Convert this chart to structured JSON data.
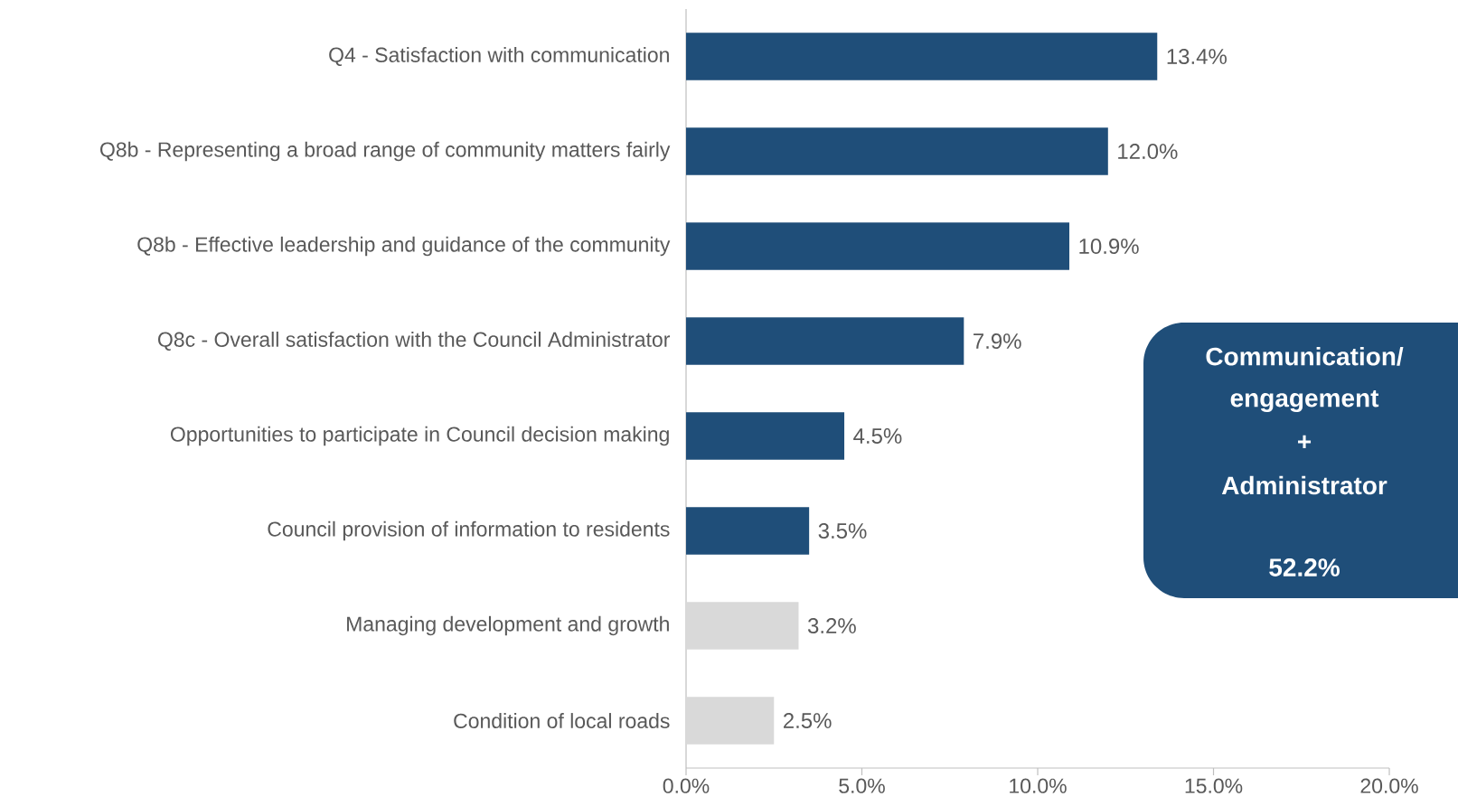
{
  "chart_data": {
    "type": "bar",
    "orientation": "horizontal",
    "categories": [
      "Q4 - Satisfaction with communication",
      "Q8b - Representing a broad range of community matters fairly",
      "Q8b - Effective leadership and guidance of the community",
      "Q8c - Overall satisfaction with the Council Administrator",
      "Opportunities to participate in Council decision making",
      "Council provision of information to residents",
      "Managing development and growth",
      "Condition of local roads"
    ],
    "values": [
      13.4,
      12.0,
      10.9,
      7.9,
      4.5,
      3.5,
      3.2,
      2.5
    ],
    "colors": [
      "#1f4e79",
      "#1f4e79",
      "#1f4e79",
      "#1f4e79",
      "#1f4e79",
      "#1f4e79",
      "#d9d9d9",
      "#d9d9d9"
    ],
    "value_labels": [
      "13.4%",
      "12.0%",
      "10.9%",
      "7.9%",
      "4.5%",
      "3.5%",
      "3.2%",
      "2.5%"
    ],
    "xlim": [
      0,
      20
    ],
    "xticks": [
      {
        "value": 0,
        "label": "0.0%"
      },
      {
        "value": 5,
        "label": "5.0%"
      },
      {
        "value": 10,
        "label": "10.0%"
      },
      {
        "value": 15,
        "label": "15.0%"
      },
      {
        "value": 20,
        "label": "20.0%"
      }
    ],
    "annotations": [
      "Communication/ engagement",
      "+",
      "Administrator",
      "52.2%"
    ]
  }
}
